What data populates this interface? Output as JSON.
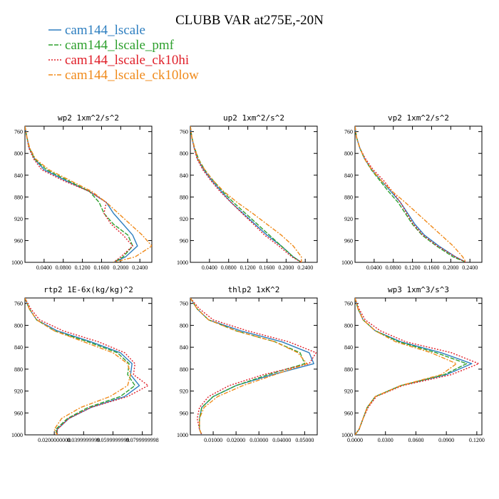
{
  "figure_title": "CLUBB VAR at275E,-20N",
  "legend": [
    {
      "label": "cam144_lscale",
      "color": "#2e7fc0",
      "dash": ""
    },
    {
      "label": "cam144_lscale_pmf",
      "color": "#2ea02e",
      "dash": "6 2"
    },
    {
      "label": "cam144_lscale_ck10hi",
      "color": "#e0202a",
      "dash": "2 2"
    },
    {
      "label": "cam144_lscale_ck10low",
      "color": "#f08a1a",
      "dash": "6 2 2 2"
    }
  ],
  "chart_data": [
    {
      "type": "line",
      "title": "wp2  1xm^2/s^2",
      "ylim": [
        1000,
        750
      ],
      "yticks": [
        760,
        800,
        840,
        880,
        920,
        960,
        1000
      ],
      "xlim": [
        0,
        0.265
      ],
      "xticks": [
        0.04,
        0.08,
        0.12,
        0.16,
        0.2,
        0.24
      ],
      "xticklabels": [
        "0.0400",
        "0.0800",
        "0.1200",
        "0.1600",
        "0.2000",
        "0.2400"
      ],
      "y": [
        750,
        770,
        790,
        810,
        830,
        850,
        870,
        890,
        910,
        930,
        950,
        970,
        990,
        1000
      ],
      "series": [
        {
          "name": "cam144_lscale",
          "values": [
            0.0,
            0.004,
            0.009,
            0.02,
            0.04,
            0.085,
            0.135,
            0.17,
            0.185,
            0.205,
            0.225,
            0.235,
            0.21,
            0.185
          ]
        },
        {
          "name": "cam144_lscale_pmf",
          "values": [
            0.0,
            0.004,
            0.009,
            0.02,
            0.045,
            0.09,
            0.135,
            0.155,
            0.165,
            0.185,
            0.215,
            0.225,
            0.205,
            0.185
          ]
        },
        {
          "name": "cam144_lscale_ck10hi",
          "values": [
            0.0,
            0.004,
            0.008,
            0.018,
            0.035,
            0.08,
            0.135,
            0.17,
            0.165,
            0.18,
            0.205,
            0.225,
            0.2,
            0.185
          ]
        },
        {
          "name": "cam144_lscale_ck10low",
          "values": [
            0.0,
            0.004,
            0.01,
            0.022,
            0.05,
            0.095,
            0.14,
            0.17,
            0.195,
            0.22,
            0.245,
            0.265,
            0.23,
            0.185
          ]
        }
      ]
    },
    {
      "type": "line",
      "title": "up2  1xm^2/s^2",
      "ylim": [
        1000,
        750
      ],
      "yticks": [
        760,
        800,
        840,
        880,
        920,
        960,
        1000
      ],
      "xlim": [
        0,
        0.265
      ],
      "xticks": [
        0.04,
        0.08,
        0.12,
        0.16,
        0.2,
        0.24
      ],
      "xticklabels": [
        "0.0400",
        "0.0800",
        "0.1200",
        "0.1600",
        "0.2000",
        "0.2400"
      ],
      "y": [
        750,
        770,
        790,
        810,
        830,
        850,
        870,
        890,
        910,
        930,
        950,
        970,
        990,
        1000
      ],
      "series": [
        {
          "name": "cam144_lscale",
          "values": [
            0.0,
            0.003,
            0.008,
            0.015,
            0.028,
            0.045,
            0.065,
            0.085,
            0.11,
            0.135,
            0.16,
            0.19,
            0.215,
            0.232
          ]
        },
        {
          "name": "cam144_lscale_pmf",
          "values": [
            0.0,
            0.003,
            0.009,
            0.017,
            0.03,
            0.048,
            0.068,
            0.09,
            0.115,
            0.14,
            0.165,
            0.19,
            0.215,
            0.232
          ]
        },
        {
          "name": "cam144_lscale_ck10hi",
          "values": [
            0.0,
            0.003,
            0.008,
            0.014,
            0.026,
            0.043,
            0.062,
            0.085,
            0.108,
            0.132,
            0.155,
            0.185,
            0.212,
            0.232
          ]
        },
        {
          "name": "cam144_lscale_ck10low",
          "values": [
            0.0,
            0.003,
            0.009,
            0.016,
            0.03,
            0.048,
            0.07,
            0.098,
            0.13,
            0.16,
            0.19,
            0.215,
            0.232,
            0.232
          ]
        }
      ]
    },
    {
      "type": "line",
      "title": "vp2  1xm^2/s^2",
      "ylim": [
        1000,
        750
      ],
      "yticks": [
        760,
        800,
        840,
        880,
        920,
        960,
        1000
      ],
      "xlim": [
        0,
        0.265
      ],
      "xticks": [
        0.04,
        0.08,
        0.12,
        0.16,
        0.2,
        0.24
      ],
      "xticklabels": [
        "0.0400",
        "0.0800",
        "0.1200",
        "0.1600",
        "0.2000",
        "0.2400"
      ],
      "y": [
        750,
        770,
        790,
        810,
        830,
        850,
        870,
        890,
        910,
        930,
        950,
        970,
        990,
        1000
      ],
      "series": [
        {
          "name": "cam144_lscale",
          "values": [
            0.0,
            0.003,
            0.01,
            0.02,
            0.035,
            0.055,
            0.075,
            0.095,
            0.11,
            0.125,
            0.145,
            0.175,
            0.21,
            0.232
          ]
        },
        {
          "name": "cam144_lscale_pmf",
          "values": [
            0.0,
            0.003,
            0.01,
            0.02,
            0.034,
            0.052,
            0.07,
            0.09,
            0.105,
            0.12,
            0.14,
            0.17,
            0.205,
            0.232
          ]
        },
        {
          "name": "cam144_lscale_ck10hi",
          "values": [
            0.0,
            0.003,
            0.01,
            0.022,
            0.038,
            0.06,
            0.078,
            0.095,
            0.108,
            0.122,
            0.142,
            0.172,
            0.21,
            0.232
          ]
        },
        {
          "name": "cam144_lscale_ck10low",
          "values": [
            0.0,
            0.003,
            0.01,
            0.02,
            0.035,
            0.055,
            0.078,
            0.105,
            0.13,
            0.155,
            0.18,
            0.205,
            0.225,
            0.232
          ]
        }
      ]
    },
    {
      "type": "line",
      "title": "rtp2  1E-6x(kg/kg)^2",
      "ylim": [
        1000,
        750
      ],
      "yticks": [
        760,
        800,
        840,
        880,
        920,
        960,
        1000
      ],
      "xlim": [
        0,
        0.0865
      ],
      "xticks": [
        0.02,
        0.04,
        0.06,
        0.08
      ],
      "xticklabels": [
        "0.0200000000",
        "0.0399999999",
        "0.0599999999",
        "0.0799999998"
      ],
      "y": [
        750,
        770,
        790,
        810,
        830,
        850,
        870,
        890,
        910,
        930,
        950,
        970,
        990,
        1000
      ],
      "series": [
        {
          "name": "cam144_lscale",
          "values": [
            0.0,
            0.003,
            0.008,
            0.022,
            0.045,
            0.065,
            0.073,
            0.072,
            0.078,
            0.068,
            0.045,
            0.03,
            0.022,
            0.022
          ]
        },
        {
          "name": "cam144_lscale_pmf",
          "values": [
            0.0,
            0.003,
            0.008,
            0.02,
            0.043,
            0.063,
            0.071,
            0.07,
            0.075,
            0.065,
            0.043,
            0.029,
            0.021,
            0.022
          ]
        },
        {
          "name": "cam144_lscale_ck10hi",
          "values": [
            0.0,
            0.004,
            0.01,
            0.026,
            0.05,
            0.068,
            0.075,
            0.074,
            0.084,
            0.07,
            0.045,
            0.03,
            0.022,
            0.022
          ]
        },
        {
          "name": "cam144_lscale_ck10low",
          "values": [
            0.0,
            0.003,
            0.008,
            0.02,
            0.04,
            0.06,
            0.07,
            0.072,
            0.07,
            0.058,
            0.038,
            0.025,
            0.02,
            0.022
          ]
        }
      ]
    },
    {
      "type": "line",
      "title": "thlp2  1xK^2",
      "ylim": [
        1000,
        750
      ],
      "yticks": [
        760,
        800,
        840,
        880,
        920,
        960,
        1000
      ],
      "xlim": [
        0,
        0.0555
      ],
      "xticks": [
        0.01,
        0.02,
        0.03,
        0.04,
        0.05
      ],
      "xticklabels": [
        "0.01000",
        "0.02000",
        "0.03000",
        "0.04000",
        "0.05000"
      ],
      "y": [
        750,
        770,
        790,
        810,
        830,
        850,
        870,
        890,
        910,
        930,
        950,
        970,
        990,
        1000
      ],
      "series": [
        {
          "name": "cam144_lscale",
          "values": [
            0.0,
            0.003,
            0.008,
            0.022,
            0.04,
            0.052,
            0.054,
            0.036,
            0.02,
            0.01,
            0.005,
            0.004,
            0.004,
            0.005
          ]
        },
        {
          "name": "cam144_lscale_pmf",
          "values": [
            0.0,
            0.003,
            0.008,
            0.02,
            0.037,
            0.048,
            0.05,
            0.034,
            0.02,
            0.01,
            0.005,
            0.004,
            0.004,
            0.005
          ]
        },
        {
          "name": "cam144_lscale_ck10hi",
          "values": [
            0.0,
            0.004,
            0.01,
            0.025,
            0.043,
            0.055,
            0.052,
            0.032,
            0.017,
            0.008,
            0.004,
            0.003,
            0.004,
            0.005
          ]
        },
        {
          "name": "cam144_lscale_ck10low",
          "values": [
            0.0,
            0.003,
            0.008,
            0.02,
            0.037,
            0.047,
            0.051,
            0.037,
            0.023,
            0.012,
            0.006,
            0.004,
            0.004,
            0.005
          ]
        }
      ]
    },
    {
      "type": "line",
      "title": "wp3  1xm^3/s^3",
      "ylim": [
        1000,
        750
      ],
      "yticks": [
        760,
        800,
        840,
        880,
        920,
        960,
        1000
      ],
      "xlim": [
        0,
        0.125
      ],
      "xticks": [
        0,
        0.03,
        0.06,
        0.09,
        0.12
      ],
      "xticklabels": [
        "0.0000",
        "0.0300",
        "0.0600",
        "0.0900",
        "0.1200"
      ],
      "y": [
        750,
        770,
        790,
        810,
        830,
        850,
        870,
        890,
        910,
        930,
        950,
        970,
        990,
        1000
      ],
      "series": [
        {
          "name": "cam144_lscale",
          "values": [
            0.0,
            0.003,
            0.008,
            0.02,
            0.045,
            0.085,
            0.115,
            0.09,
            0.045,
            0.02,
            0.012,
            0.008,
            0.004,
            0.0
          ]
        },
        {
          "name": "cam144_lscale_pmf",
          "values": [
            0.0,
            0.003,
            0.008,
            0.02,
            0.043,
            0.08,
            0.11,
            0.088,
            0.045,
            0.02,
            0.012,
            0.008,
            0.004,
            0.0
          ]
        },
        {
          "name": "cam144_lscale_ck10hi",
          "values": [
            0.0,
            0.004,
            0.01,
            0.025,
            0.05,
            0.095,
            0.122,
            0.095,
            0.047,
            0.021,
            0.013,
            0.008,
            0.004,
            0.0
          ]
        },
        {
          "name": "cam144_lscale_ck10low",
          "values": [
            0.0,
            0.003,
            0.008,
            0.02,
            0.04,
            0.075,
            0.1,
            0.085,
            0.045,
            0.02,
            0.012,
            0.008,
            0.004,
            0.0
          ]
        }
      ]
    }
  ]
}
